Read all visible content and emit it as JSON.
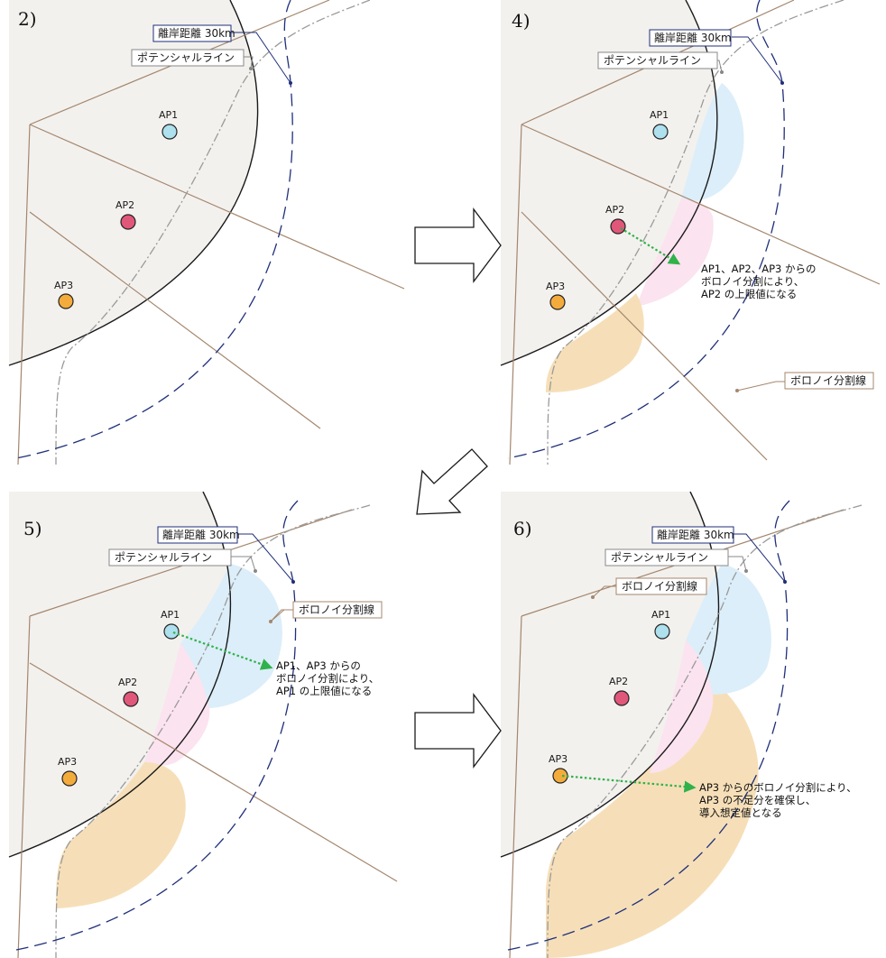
{
  "panels": [
    {
      "id": "p2",
      "label": "2)",
      "shore_label": "離岸距離 30km",
      "potential_label": "ポテンシャルライン",
      "ap_labels": [
        "AP1",
        "AP2",
        "AP3"
      ],
      "voronoi_label": "",
      "note": []
    },
    {
      "id": "p4",
      "label": "4)",
      "shore_label": "離岸距離 30km",
      "potential_label": "ポテンシャルライン",
      "ap_labels": [
        "AP1",
        "AP2",
        "AP3"
      ],
      "voronoi_label": "ボロノイ分割線",
      "note": [
        "AP1、AP2、AP3 からの",
        "ボロノイ分割により、",
        "AP2 の上限値になる"
      ]
    },
    {
      "id": "p5",
      "label": "5)",
      "shore_label": "離岸距離 30km",
      "potential_label": "ポテンシャルライン",
      "ap_labels": [
        "AP1",
        "AP2",
        "AP3"
      ],
      "voronoi_label": "ボロノイ分割線",
      "note": [
        "AP1、AP3 からの",
        "ボロノイ分割により、",
        "AP1 の上限値になる"
      ]
    },
    {
      "id": "p6",
      "label": "6)",
      "shore_label": "離岸距離 30km",
      "potential_label": "ポテンシャルライン",
      "ap_labels": [
        "AP1",
        "AP2",
        "AP3"
      ],
      "voronoi_label": "ボロノイ分割線",
      "note": [
        "AP3 からのボロノイ分割により、",
        "AP3 の不足分を確保し、",
        "導入想定値となる"
      ]
    }
  ],
  "colors": {
    "land": "#f3f1ee",
    "coast": "#1a1a1a",
    "voronoi_line": "#a4876e",
    "potential_line": "#9a9a9a",
    "shore_line": "#1f2f7a",
    "ap1": "#aee0ee",
    "ap2": "#e0577a",
    "ap3": "#f3ac3c",
    "zone_ap1": "#dceef9",
    "zone_ap2": "#fbe3ef",
    "zone_ap3": "#f6dfb8",
    "arrow_green": "#2fb24a"
  },
  "icons": [
    "right-arrow-icon",
    "down-left-arrow-icon",
    "right-arrow-icon"
  ]
}
